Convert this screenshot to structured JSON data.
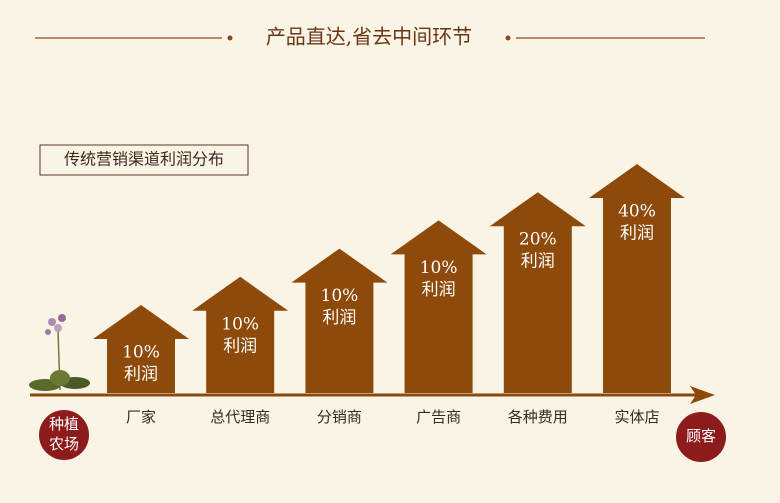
{
  "title": "产品直达,省去中间环节",
  "box_label": "传统营销渠道利润分布",
  "start_node": {
    "line1": "种植",
    "line2": "农场"
  },
  "end_node": "顾客",
  "stages": [
    {
      "name": "厂家",
      "percent": "10%",
      "profit": "利润"
    },
    {
      "name": "总代理商",
      "percent": "10%",
      "profit": "利润"
    },
    {
      "name": "分销商",
      "percent": "10%",
      "profit": "利润"
    },
    {
      "name": "广告商",
      "percent": "10%",
      "profit": "利润"
    },
    {
      "name": "各种费用",
      "percent": "20%",
      "profit": "利润"
    },
    {
      "name": "实体店",
      "percent": "40%",
      "profit": "利润"
    }
  ]
}
